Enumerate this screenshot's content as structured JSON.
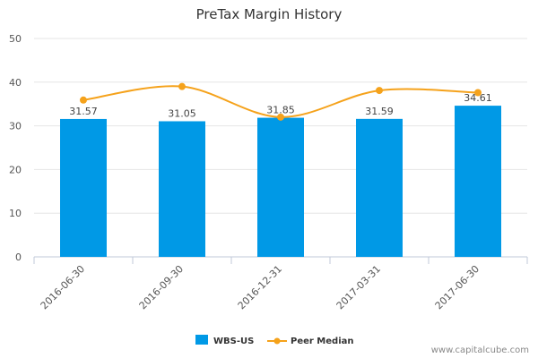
{
  "chart_data": {
    "type": "bar",
    "title": "PreTax Margin History",
    "categories": [
      "2016-06-30",
      "2016-09-30",
      "2016-12-31",
      "2017-03-31",
      "2017-06-30"
    ],
    "series": [
      {
        "name": "WBS-US",
        "type": "bar",
        "values": [
          31.57,
          31.05,
          31.85,
          31.59,
          34.61
        ],
        "data_labels": [
          "31.57",
          "31.05",
          "31.85",
          "31.59",
          "34.61"
        ],
        "color": "#0099e6"
      },
      {
        "name": "Peer Median",
        "type": "line",
        "smooth": true,
        "values": [
          35.9,
          39.0,
          32.0,
          38.1,
          37.6
        ],
        "color": "#f5a21b"
      }
    ],
    "ylim": [
      0,
      50
    ],
    "yticks": [
      0,
      10,
      20,
      30,
      40,
      50
    ],
    "grid": true,
    "legend_position": "bottom-center"
  },
  "watermark": "www.capitalcube.com"
}
